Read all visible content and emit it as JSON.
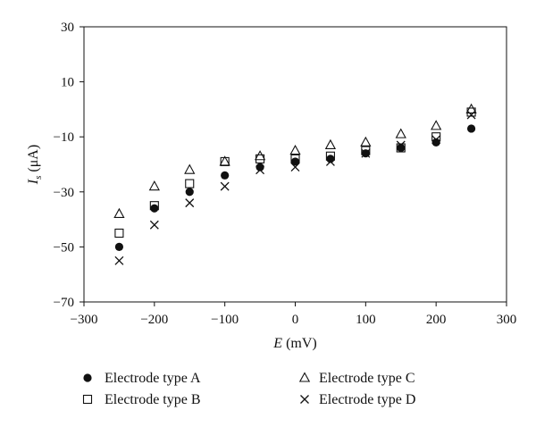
{
  "chart_data": {
    "type": "scatter",
    "title": "",
    "xlabel": {
      "main": "E",
      "unit": " (mV)"
    },
    "ylabel": {
      "main": "I",
      "sub": "s",
      "unit": " (μA)"
    },
    "xlim": [
      -300,
      300
    ],
    "ylim": [
      -70,
      30
    ],
    "xticks": [
      -300,
      -200,
      -100,
      0,
      100,
      200,
      300
    ],
    "xtick_labels": [
      "−300",
      "−200",
      "−100",
      "0",
      "100",
      "200",
      "300"
    ],
    "yticks": [
      -70,
      -50,
      -30,
      -10,
      10,
      30
    ],
    "ytick_labels": [
      "−70",
      "−50",
      "−30",
      "−10",
      "10",
      "30"
    ],
    "grid": false,
    "legend_position": "bottom",
    "series": [
      {
        "name": "Electrode type A",
        "marker": "filled-circle",
        "x": [
          -250,
          -200,
          -150,
          -100,
          -50,
          0,
          50,
          100,
          150,
          200,
          250
        ],
        "y": [
          -50,
          -36,
          -30,
          -24,
          -21,
          -19,
          -18,
          -16,
          -14,
          -12,
          -7
        ]
      },
      {
        "name": "Electrode type B",
        "marker": "open-square",
        "x": [
          -250,
          -200,
          -150,
          -100,
          -50,
          0,
          50,
          100,
          150,
          200,
          250
        ],
        "y": [
          -45,
          -35,
          -27,
          -19,
          -18,
          -18,
          -17,
          -15,
          -14,
          -10,
          -1
        ]
      },
      {
        "name": "Electrode type C",
        "marker": "open-triangle",
        "x": [
          -250,
          -200,
          -150,
          -100,
          -50,
          0,
          50,
          100,
          150,
          200,
          250
        ],
        "y": [
          -38,
          -28,
          -22,
          -19,
          -17,
          -15,
          -13,
          -12,
          -9,
          -6,
          0
        ]
      },
      {
        "name": "Electrode type D",
        "marker": "cross",
        "x": [
          -250,
          -200,
          -150,
          -100,
          -50,
          0,
          50,
          100,
          150,
          200,
          250
        ],
        "y": [
          -55,
          -42,
          -34,
          -28,
          -22,
          -21,
          -19,
          -16,
          -13,
          -11,
          -2
        ]
      }
    ]
  }
}
